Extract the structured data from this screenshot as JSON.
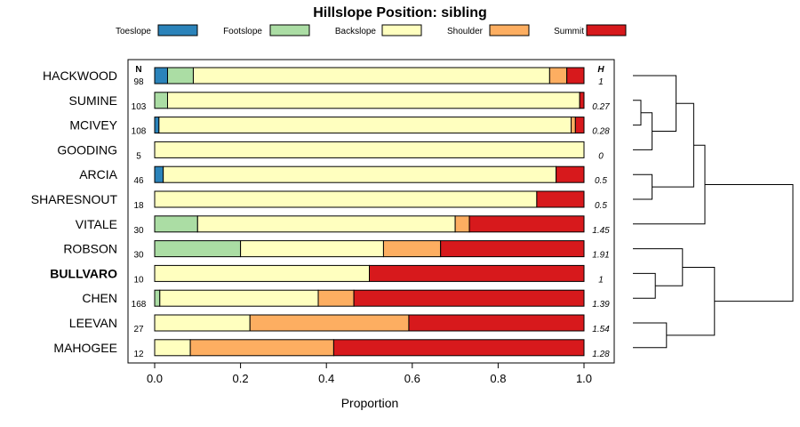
{
  "chart_data": {
    "type": "bar",
    "subtype": "stacked-horizontal-proportion",
    "title": "Hillslope Position: sibling",
    "xlabel": "Proportion",
    "xlim": [
      0,
      1
    ],
    "x_ticks": [
      0,
      0.2,
      0.4,
      0.6,
      0.8,
      1
    ],
    "x_tick_labels": [
      "0.0",
      "0.2",
      "0.4",
      "0.6",
      "0.8",
      "1.0"
    ],
    "n_header": "N",
    "h_header": "H",
    "legend_position": "top",
    "legend": [
      {
        "name": "Toeslope",
        "color": "#2b83ba"
      },
      {
        "name": "Footslope",
        "color": "#abdda4"
      },
      {
        "name": "Backslope",
        "color": "#ffffbf"
      },
      {
        "name": "Shoulder",
        "color": "#fdae61"
      },
      {
        "name": "Summit",
        "color": "#d7191c"
      }
    ],
    "highlight": "BULLVARO",
    "rows": [
      {
        "name": "HACKWOOD",
        "n": "98",
        "h": "1",
        "values": [
          0.03,
          0.06,
          0.83,
          0.04,
          0.04
        ]
      },
      {
        "name": "SUMINE",
        "n": "103",
        "h": "0.27",
        "values": [
          0.0,
          0.03,
          0.96,
          0.0,
          0.01
        ]
      },
      {
        "name": "MCIVEY",
        "n": "108",
        "h": "0.28",
        "values": [
          0.01,
          0.0,
          0.96,
          0.01,
          0.02
        ]
      },
      {
        "name": "GOODING",
        "n": "5",
        "h": "0",
        "values": [
          0.0,
          0.0,
          1.0,
          0.0,
          0.0
        ]
      },
      {
        "name": "ARCIA",
        "n": "46",
        "h": "0.5",
        "values": [
          0.02,
          0.0,
          0.915,
          0.0,
          0.065
        ]
      },
      {
        "name": "SHARESNOUT",
        "n": "18",
        "h": "0.5",
        "values": [
          0.0,
          0.0,
          0.89,
          0.0,
          0.11
        ]
      },
      {
        "name": "VITALE",
        "n": "30",
        "h": "1.45",
        "values": [
          0.0,
          0.1,
          0.6,
          0.033,
          0.267
        ]
      },
      {
        "name": "ROBSON",
        "n": "30",
        "h": "1.91",
        "values": [
          0.0,
          0.2,
          0.333,
          0.133,
          0.334
        ]
      },
      {
        "name": "BULLVARO",
        "n": "10",
        "h": "1",
        "values": [
          0.0,
          0.0,
          0.5,
          0.0,
          0.5
        ]
      },
      {
        "name": "CHEN",
        "n": "168",
        "h": "1.39",
        "values": [
          0.0,
          0.012,
          0.369,
          0.083,
          0.536
        ]
      },
      {
        "name": "LEEVAN",
        "n": "27",
        "h": "1.54",
        "values": [
          0.0,
          0.0,
          0.222,
          0.37,
          0.408
        ]
      },
      {
        "name": "MAHOGEE",
        "n": "12",
        "h": "1.28",
        "values": [
          0.0,
          0.0,
          0.083,
          0.334,
          0.583
        ]
      }
    ],
    "dendrogram": {
      "merges": [
        {
          "a": 1,
          "b": 2,
          "height": 0.05
        },
        {
          "a": -1,
          "b": 3,
          "height": 0.12
        },
        {
          "a": 0,
          "b": -2,
          "height": 0.27
        },
        {
          "a": 4,
          "b": 5,
          "height": 0.12
        },
        {
          "a": -3,
          "b": -4,
          "height": 0.38
        },
        {
          "a": -5,
          "b": 6,
          "height": 0.45
        },
        {
          "a": 8,
          "b": 9,
          "height": 0.14
        },
        {
          "a": 7,
          "b": -7,
          "height": 0.31
        },
        {
          "a": 10,
          "b": 11,
          "height": 0.21
        },
        {
          "a": -8,
          "b": -9,
          "height": 0.51
        },
        {
          "a": -6,
          "b": -10,
          "height": 1.0
        }
      ]
    }
  }
}
